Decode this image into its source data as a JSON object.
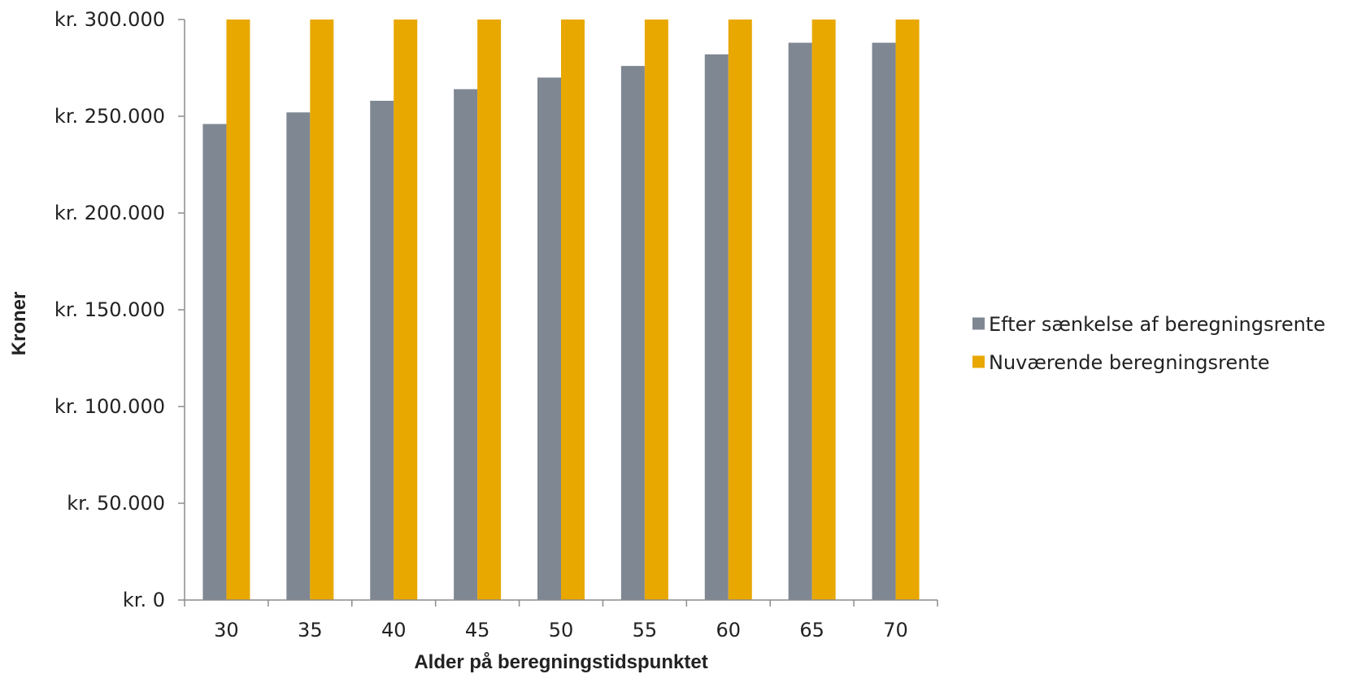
{
  "chart_data": {
    "type": "bar",
    "title": "",
    "xlabel": "Alder på beregningstidspunktet",
    "ylabel": "Kroner",
    "categories": [
      "30",
      "35",
      "40",
      "45",
      "50",
      "55",
      "60",
      "65",
      "70"
    ],
    "series": [
      {
        "name": "Efter sænkelse af beregningsrente",
        "color": "#7f8793",
        "values": [
          246000,
          252000,
          258000,
          264000,
          270000,
          276000,
          282000,
          288000,
          288000
        ]
      },
      {
        "name": "Nuværende beregningsrente",
        "color": "#e8a800",
        "values": [
          300000,
          300000,
          300000,
          300000,
          300000,
          300000,
          300000,
          300000,
          300000
        ]
      }
    ],
    "ylim": [
      0,
      300000
    ],
    "yticks": [
      0,
      50000,
      100000,
      150000,
      200000,
      250000,
      300000
    ],
    "ytick_labels": [
      "kr. 0",
      "kr. 50.000",
      "kr. 100.000",
      "kr. 150.000",
      "kr. 200.000",
      "kr. 250.000",
      "kr. 300.000"
    ],
    "grid": false,
    "legend_position": "right"
  }
}
